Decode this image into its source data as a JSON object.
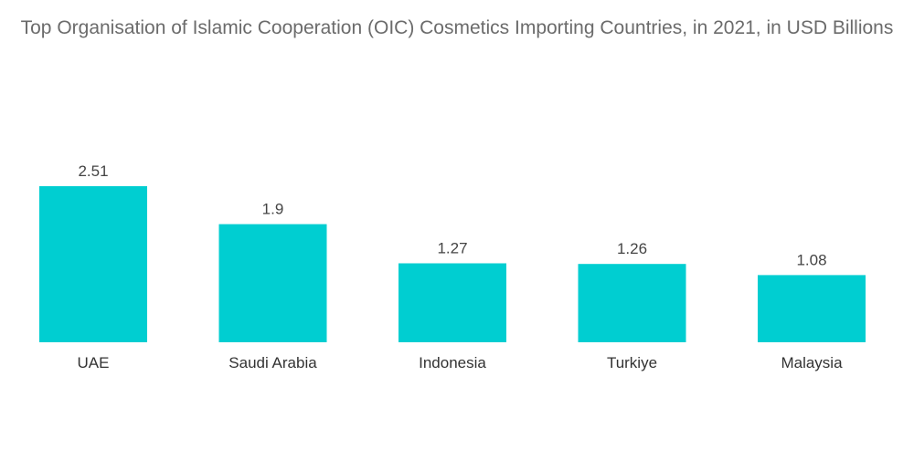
{
  "chart_data": {
    "type": "bar",
    "title": "Top Organisation of Islamic Cooperation (OIC) Cosmetics Importing Countries, in 2021, in USD Billions",
    "categories": [
      "UAE",
      "Saudi Arabia",
      "Indonesia",
      "Turkiye",
      "Malaysia"
    ],
    "values": [
      2.51,
      1.9,
      1.27,
      1.26,
      1.08
    ],
    "value_labels": [
      "2.51",
      "1.9",
      "1.27",
      "1.26",
      "1.08"
    ],
    "ylim": [
      0,
      2.51
    ],
    "grid": false,
    "legend": "none",
    "colors": {
      "bar": "#00CED1"
    }
  }
}
